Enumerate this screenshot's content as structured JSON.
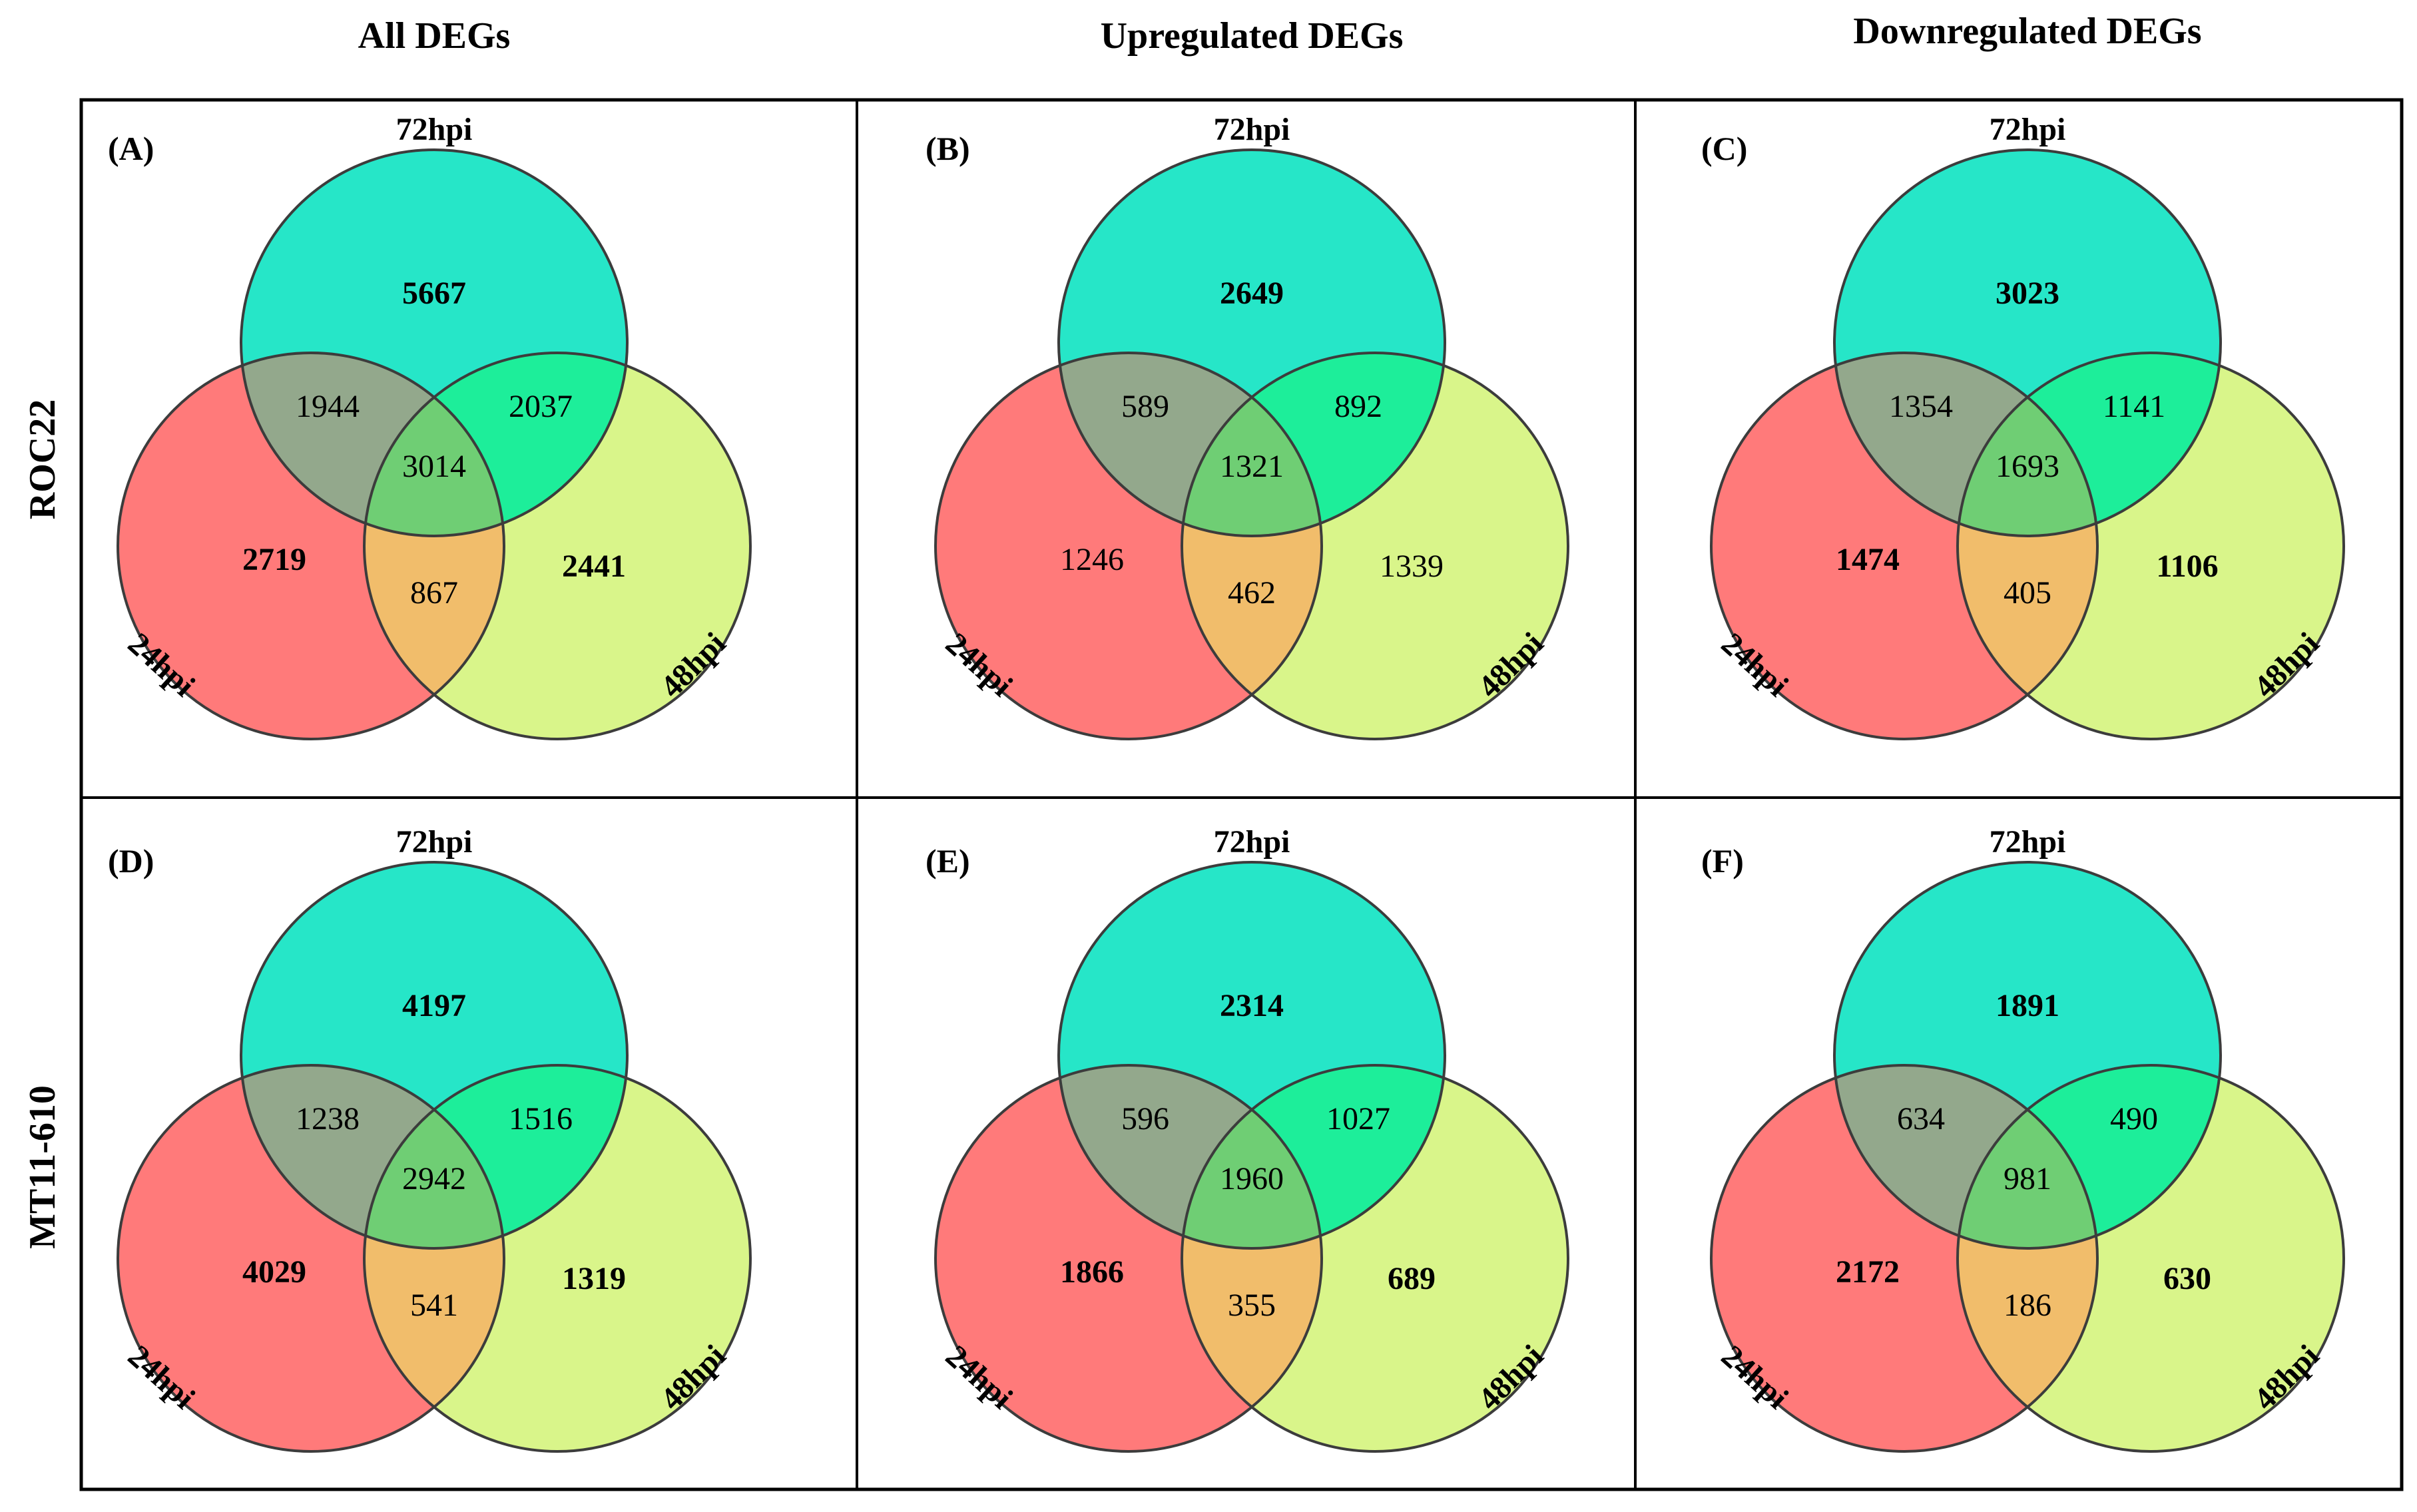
{
  "columns": [
    "All DEGs",
    "Upregulated DEGs",
    "Downregulated DEGs"
  ],
  "rows": [
    "ROC22",
    "MT11-610"
  ],
  "set_labels": {
    "top": "72hpi",
    "left": "24hpi",
    "right": "48hpi"
  },
  "colors": {
    "left": "#ff7a7a",
    "right": "#d9f58a",
    "top": "#26e6c8",
    "left_top": "#93a88c",
    "top_right": "#1dee9a",
    "left_right": "#f1bd6b",
    "center": "#6fce74",
    "outline": "#3c3c3c"
  },
  "panels": [
    {
      "label": "(A)",
      "top": "5667",
      "left": "2719",
      "right": "2441",
      "left_top": "1944",
      "top_right": "2037",
      "center": "3014",
      "left_right": "867",
      "bold": [
        "top",
        "left",
        "right"
      ]
    },
    {
      "label": "(B)",
      "top": "2649",
      "left": "1246",
      "right": "1339",
      "left_top": "589",
      "top_right": "892",
      "center": "1321",
      "left_right": "462",
      "bold": [
        "top"
      ]
    },
    {
      "label": "(C)",
      "top": "3023",
      "left": "1474",
      "right": "1106",
      "left_top": "1354",
      "top_right": "1141",
      "center": "1693",
      "left_right": "405",
      "bold": [
        "top",
        "left",
        "right"
      ]
    },
    {
      "label": "(D)",
      "top": "4197",
      "left": "4029",
      "right": "1319",
      "left_top": "1238",
      "top_right": "1516",
      "center": "2942",
      "left_right": "541",
      "bold": [
        "top",
        "left",
        "right"
      ]
    },
    {
      "label": "(E)",
      "top": "2314",
      "left": "1866",
      "right": "689",
      "left_top": "596",
      "top_right": "1027",
      "center": "1960",
      "left_right": "355",
      "bold": [
        "top",
        "left",
        "right"
      ]
    },
    {
      "label": "(F)",
      "top": "1891",
      "left": "2172",
      "right": "630",
      "left_top": "634",
      "top_right": "490",
      "center": "981",
      "left_right": "186",
      "bold": [
        "top",
        "left",
        "right"
      ]
    }
  ]
}
